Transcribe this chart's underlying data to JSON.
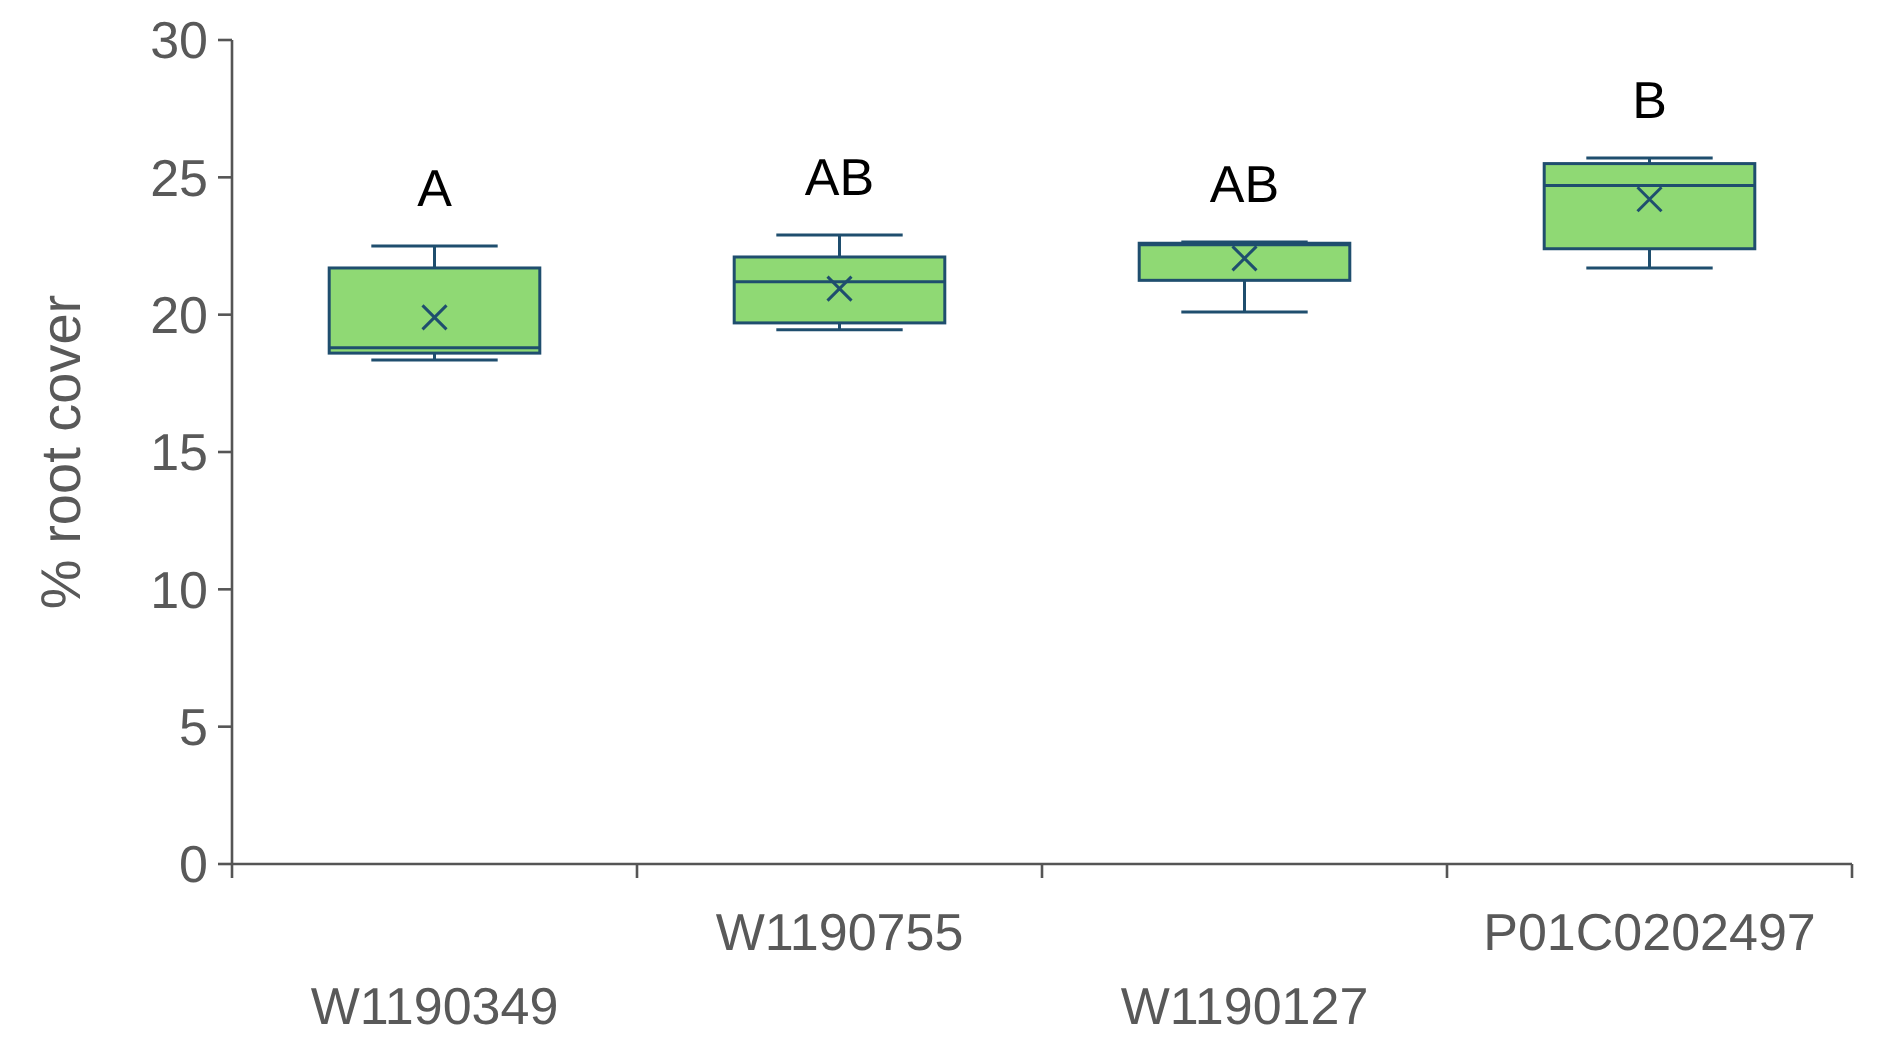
{
  "chart_data": {
    "type": "box",
    "ylabel": "% root cover",
    "categories": [
      "W1190349",
      "W1190755",
      "W1190127",
      "P01C0202497"
    ],
    "boxes": [
      {
        "low": 18.35,
        "q1": 18.6,
        "median": 18.8,
        "q3": 21.7,
        "high": 22.5,
        "mean": 19.9
      },
      {
        "low": 19.45,
        "q1": 19.7,
        "median": 21.2,
        "q3": 22.1,
        "high": 22.9,
        "mean": 20.95
      },
      {
        "low": 20.1,
        "q1": 21.25,
        "median": 22.55,
        "q3": 22.6,
        "high": 22.65,
        "mean": 22.05
      },
      {
        "low": 21.7,
        "q1": 22.4,
        "median": 24.7,
        "q3": 25.5,
        "high": 25.7,
        "mean": 24.2
      }
    ],
    "color": "#8fd974",
    "ylim": [
      0,
      30
    ],
    "yticks": [
      0,
      5,
      10,
      15,
      20,
      25,
      30
    ],
    "grid": false,
    "annotations": [
      "A",
      "AB",
      "AB",
      "B"
    ]
  }
}
